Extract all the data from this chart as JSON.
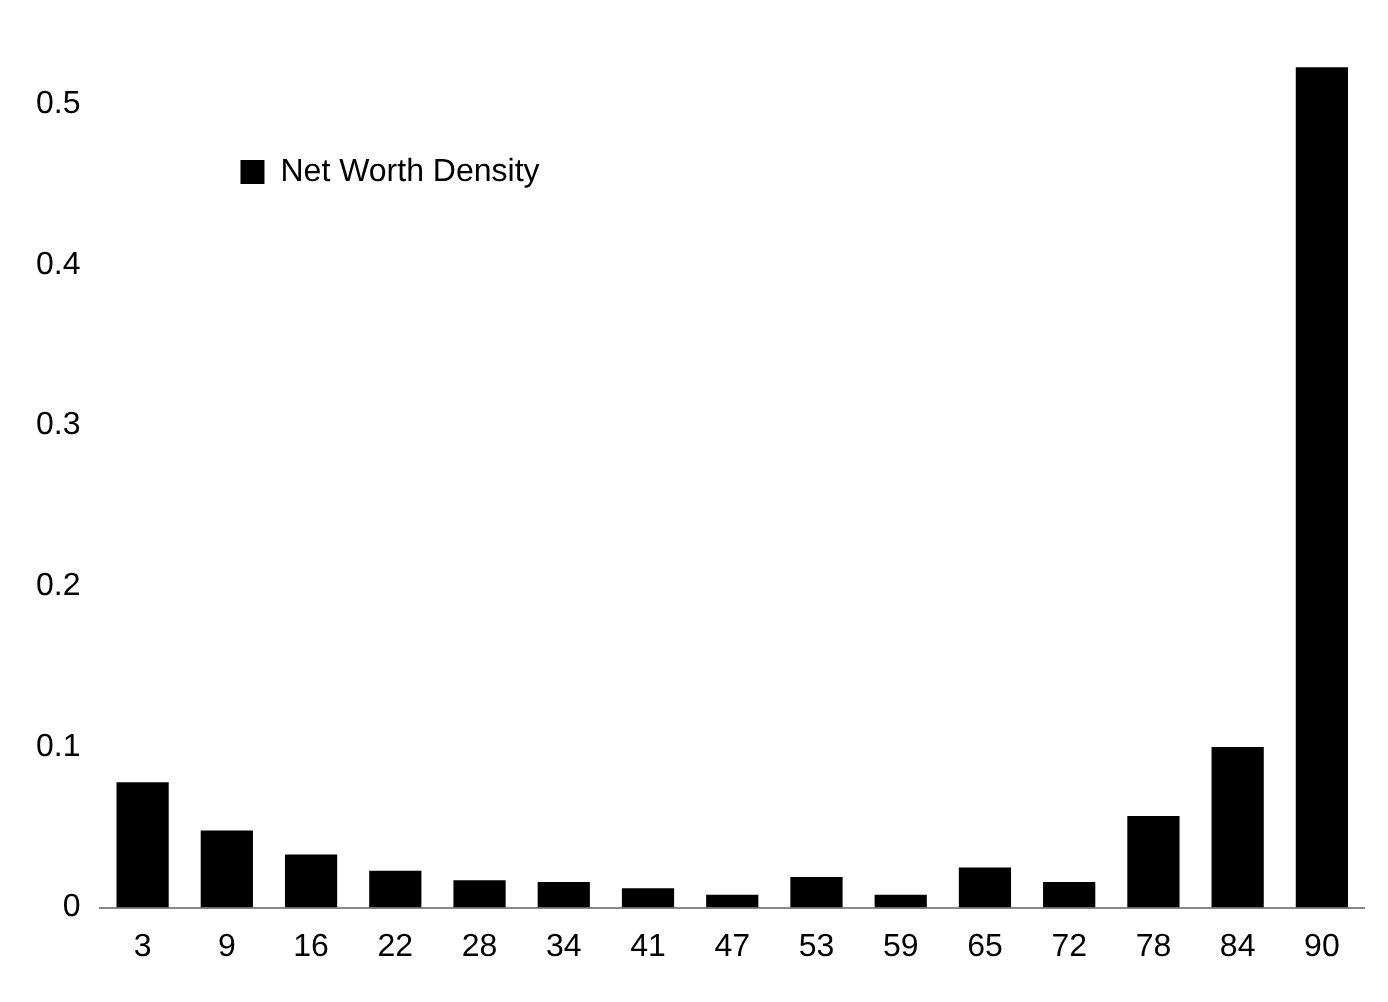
{
  "chart_data": {
    "type": "bar",
    "categories": [
      "3",
      "9",
      "16",
      "22",
      "28",
      "34",
      "41",
      "47",
      "53",
      "59",
      "65",
      "72",
      "78",
      "84",
      "90"
    ],
    "series": [
      {
        "name": "Net Worth Density",
        "color": "#000000",
        "values": [
          0.078,
          0.048,
          0.033,
          0.023,
          0.017,
          0.016,
          0.012,
          0.008,
          0.019,
          0.008,
          0.025,
          0.016,
          0.057,
          0.1,
          0.523
        ]
      }
    ],
    "ylim": [
      0,
      0.53
    ],
    "yticks": [
      0,
      0.1,
      0.2,
      0.3,
      0.4,
      0.5
    ],
    "grid": false,
    "legend": "top left"
  }
}
